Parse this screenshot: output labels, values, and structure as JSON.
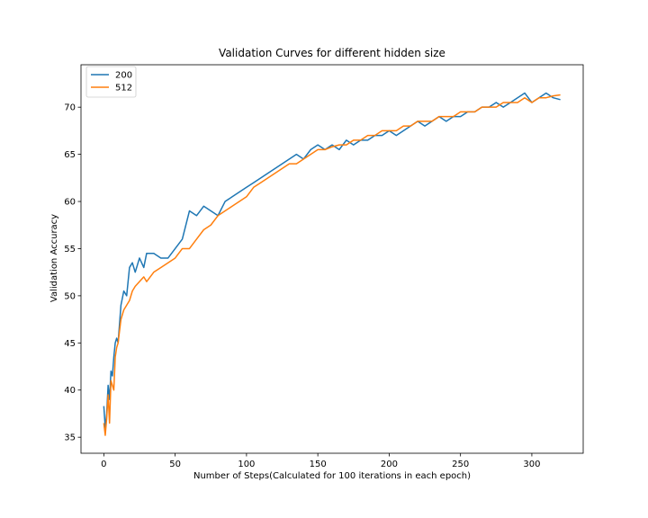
{
  "chart_data": {
    "type": "line",
    "title": "Validation Curves for different hidden size",
    "xlabel": "Number of Steps(Calculated for 100 iterations in each epoch)",
    "ylabel": "Validation Accuracy",
    "xlim": [
      -16,
      336
    ],
    "ylim": [
      33.3,
      74.5
    ],
    "xticks": [
      0,
      50,
      100,
      150,
      200,
      250,
      300
    ],
    "yticks": [
      35,
      40,
      45,
      50,
      55,
      60,
      65,
      70
    ],
    "grid": false,
    "legend_position": "top-left",
    "colors": {
      "200": "#1f77b4",
      "512": "#ff7f0e"
    },
    "series": [
      {
        "name": "200",
        "x": [
          0,
          1,
          2,
          3,
          4,
          5,
          6,
          7,
          8,
          9,
          10,
          12,
          14,
          16,
          18,
          20,
          22,
          25,
          28,
          30,
          35,
          40,
          45,
          50,
          55,
          60,
          65,
          70,
          75,
          80,
          85,
          90,
          95,
          100,
          105,
          110,
          115,
          120,
          125,
          130,
          135,
          140,
          145,
          150,
          155,
          160,
          165,
          170,
          175,
          180,
          185,
          190,
          195,
          200,
          205,
          210,
          215,
          220,
          225,
          230,
          235,
          240,
          245,
          250,
          255,
          260,
          265,
          270,
          275,
          280,
          285,
          290,
          295,
          300,
          305,
          310,
          315,
          320
        ],
        "y": [
          38.3,
          36.0,
          37.5,
          40.5,
          39.0,
          42.0,
          41.5,
          43.5,
          45.0,
          45.5,
          45.0,
          49.0,
          50.5,
          50.0,
          53.0,
          53.5,
          52.5,
          54.0,
          53.0,
          54.5,
          54.5,
          54.0,
          54.0,
          55.0,
          56.0,
          59.0,
          58.5,
          59.5,
          59.0,
          58.5,
          60.0,
          60.5,
          61.0,
          61.5,
          62.0,
          62.5,
          63.0,
          63.5,
          64.0,
          64.5,
          65.0,
          64.5,
          65.5,
          66.0,
          65.5,
          66.0,
          65.5,
          66.5,
          66.0,
          66.5,
          66.5,
          67.0,
          67.0,
          67.5,
          67.0,
          67.5,
          68.0,
          68.5,
          68.0,
          68.5,
          69.0,
          68.5,
          69.0,
          69.0,
          69.5,
          69.5,
          70.0,
          70.0,
          70.5,
          70.0,
          70.5,
          71.0,
          71.5,
          70.5,
          71.0,
          71.5,
          71.0,
          70.8
        ]
      },
      {
        "name": "512",
        "x": [
          0,
          1,
          2,
          3,
          4,
          5,
          6,
          7,
          8,
          9,
          10,
          12,
          14,
          16,
          18,
          20,
          22,
          25,
          28,
          30,
          35,
          40,
          45,
          50,
          55,
          60,
          65,
          70,
          75,
          80,
          85,
          90,
          95,
          100,
          105,
          110,
          115,
          120,
          125,
          130,
          135,
          140,
          145,
          150,
          155,
          160,
          165,
          170,
          175,
          180,
          185,
          190,
          195,
          200,
          205,
          210,
          215,
          220,
          225,
          230,
          235,
          240,
          245,
          250,
          255,
          260,
          265,
          270,
          275,
          280,
          285,
          290,
          295,
          300,
          305,
          310,
          315,
          320
        ],
        "y": [
          36.5,
          35.2,
          37.0,
          39.5,
          36.5,
          41.0,
          40.5,
          40.0,
          43.5,
          44.5,
          45.0,
          47.5,
          48.5,
          49.0,
          49.5,
          50.5,
          51.0,
          51.5,
          52.0,
          51.5,
          52.5,
          53.0,
          53.5,
          54.0,
          55.0,
          55.0,
          56.0,
          57.0,
          57.5,
          58.5,
          59.0,
          59.5,
          60.0,
          60.5,
          61.5,
          62.0,
          62.5,
          63.0,
          63.5,
          64.0,
          64.0,
          64.5,
          65.0,
          65.5,
          65.5,
          65.8,
          66.0,
          66.0,
          66.5,
          66.5,
          67.0,
          67.0,
          67.5,
          67.5,
          67.5,
          68.0,
          68.0,
          68.5,
          68.5,
          68.5,
          69.0,
          69.0,
          69.0,
          69.5,
          69.5,
          69.5,
          70.0,
          70.0,
          70.0,
          70.5,
          70.5,
          70.5,
          71.0,
          70.5,
          71.0,
          71.0,
          71.2,
          71.3
        ]
      }
    ]
  }
}
